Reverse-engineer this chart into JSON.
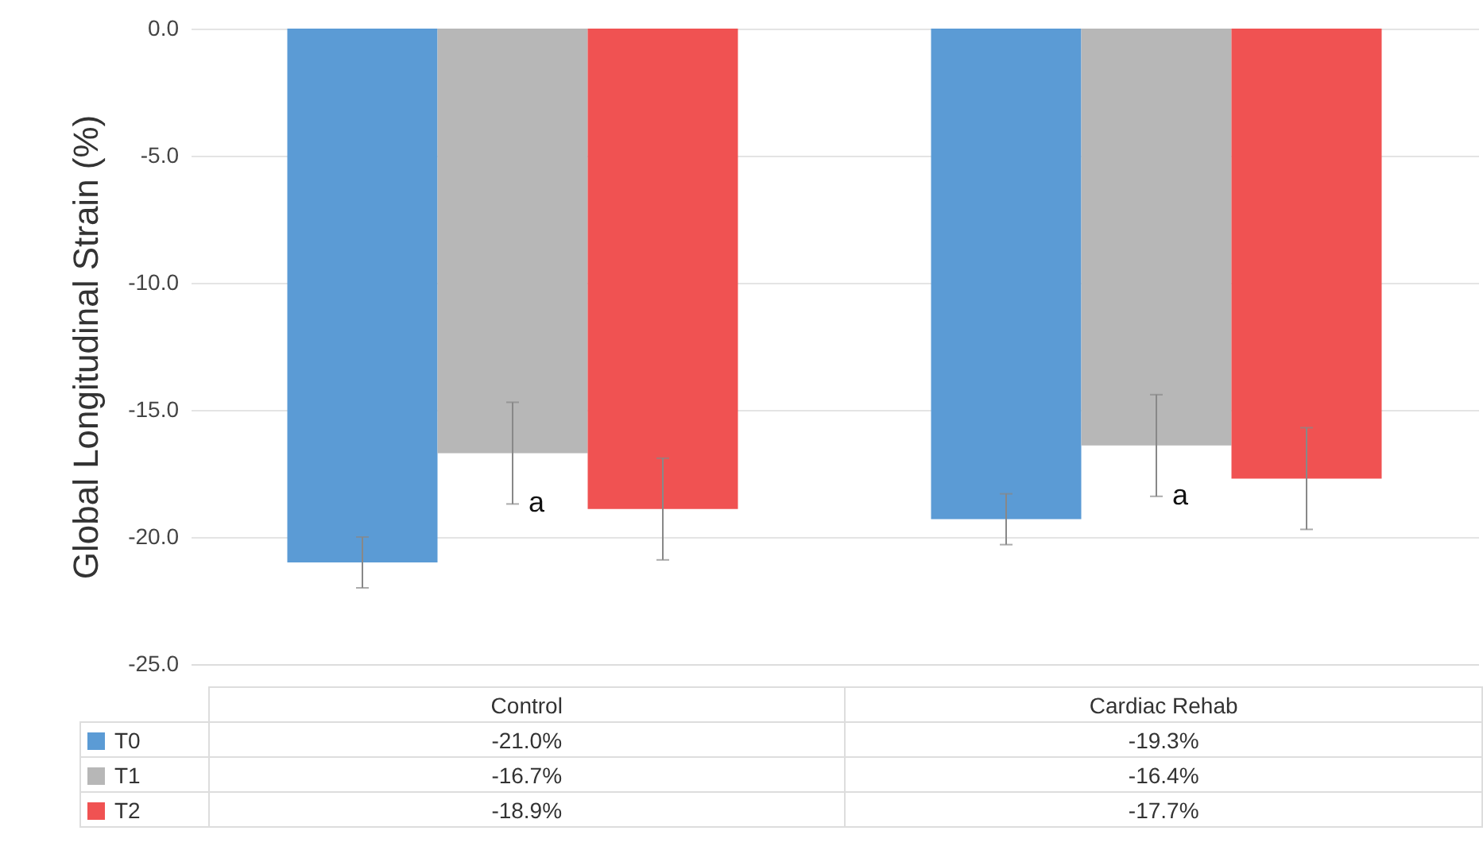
{
  "chart_data": {
    "type": "bar",
    "ylabel": "Global Longitudinal Strain (%)",
    "categories": [
      "Control",
      "Cardiac Rehab"
    ],
    "series": [
      {
        "name": "T0",
        "color": "#5b9bd5",
        "values": [
          -21.0,
          -19.3
        ],
        "errors": [
          1.0,
          1.0
        ],
        "value_labels": [
          "-21.0%",
          "-19.3%"
        ]
      },
      {
        "name": "T1",
        "color": "#b7b7b7",
        "values": [
          -16.7,
          -16.4
        ],
        "errors": [
          2.0,
          2.0
        ],
        "value_labels": [
          "-16.7%",
          "-16.4%"
        ]
      },
      {
        "name": "T2",
        "color": "#f05252",
        "values": [
          -18.9,
          -17.7
        ],
        "errors": [
          2.0,
          2.0
        ],
        "value_labels": [
          "-18.9%",
          "-17.7%"
        ]
      }
    ],
    "ylim": [
      -25,
      0
    ],
    "yticks": [
      {
        "value": 0,
        "label": "0.0"
      },
      {
        "value": -5,
        "label": "-5.0"
      },
      {
        "value": -10,
        "label": "-10.0"
      },
      {
        "value": -15,
        "label": "-15.0"
      },
      {
        "value": -20,
        "label": "-20.0"
      },
      {
        "value": -25,
        "label": "-25.0"
      }
    ],
    "annotations": [
      {
        "text": "a",
        "x": "Control",
        "y": -18.7
      },
      {
        "text": "a",
        "x": "Cardiac Rehab",
        "y": -18.4
      }
    ],
    "grid": "y",
    "legend": "bottom"
  }
}
